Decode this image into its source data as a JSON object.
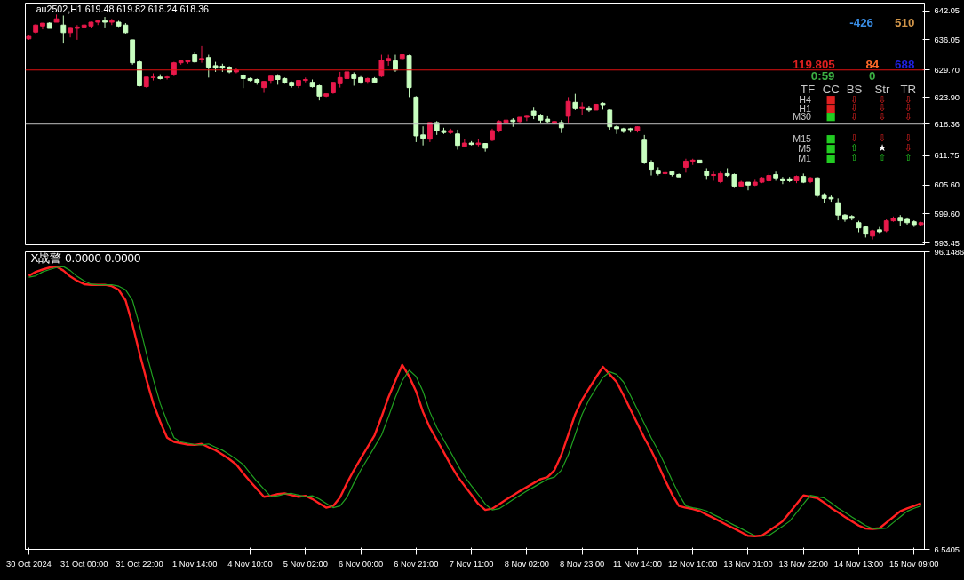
{
  "chart_data": [
    {
      "type": "candlestick",
      "ylim": [
        593.1,
        643.7
      ],
      "tick_labels": "y",
      "grid": false,
      "categories": [
        null,
        null,
        null,
        null,
        null,
        null,
        null,
        null,
        null,
        null,
        null,
        null,
        null,
        null,
        null,
        null,
        null,
        null,
        null,
        null,
        null,
        null,
        null,
        null,
        null,
        null,
        null,
        null,
        null,
        null,
        null,
        null,
        null,
        null,
        null,
        null,
        null,
        null,
        null,
        null,
        null,
        null,
        null,
        null,
        null,
        null,
        null,
        null,
        null,
        null,
        null,
        null,
        null,
        null,
        null,
        null,
        null,
        null,
        null,
        null,
        null,
        null,
        null,
        null,
        null,
        null,
        null,
        null,
        null,
        null,
        null,
        null,
        null,
        null,
        null,
        null,
        null,
        null,
        null,
        null,
        null,
        null,
        null,
        null,
        null,
        null,
        null,
        null,
        null,
        null,
        null,
        null,
        null,
        null,
        null,
        null,
        null,
        null,
        null,
        null,
        null,
        null,
        null,
        null,
        null,
        null,
        null,
        null,
        null,
        null,
        null,
        null,
        null,
        null,
        null,
        null,
        null,
        null,
        null,
        null,
        null,
        null,
        null,
        null,
        null,
        null,
        null,
        null,
        null,
        null
      ],
      "yticks": [
        642.05,
        636.05,
        {
          "value": 623.9,
          "label": "623.90"
        },
        611.75,
        {
          "value": 605.6,
          "label": "605.60"
        },
        {
          "value": 599.6,
          "label": "599.60"
        },
        593.45
      ],
      "ref_lines": [
        {
          "axis": "y",
          "value": 629.7,
          "label": "629.70",
          "color": "#e01010"
        },
        {
          "axis": "y",
          "value": 618.36,
          "label": "618.36",
          "color": "#c0c0c0"
        }
      ],
      "annotations": [
        "au2502,H1  619.48 619.82 618.24 618.36",
        "-426",
        "510",
        "119.805",
        "84",
        "688",
        "0:59",
        "0",
        "TF",
        "CC",
        "BS",
        "Str",
        "TR",
        "H4",
        "H1",
        "M30",
        "M15",
        "M5",
        "M1",
        "■",
        "■",
        "■",
        "■",
        "■",
        "■",
        "⇩",
        "⇩",
        "⇩",
        "⇩",
        "⇩",
        "⇩",
        "⇩",
        "⇩",
        "⇩",
        "⇩",
        "⇩",
        "⇩",
        "⇧",
        "★",
        "⇩",
        "⇧",
        "⇧",
        "⇧"
      ],
      "ohlc": [
        [
          636.2,
          637.1,
          636.0,
          636.9
        ],
        [
          637.6,
          639.3,
          637.3,
          639.1
        ],
        [
          638.9,
          639.5,
          638.2,
          639.5
        ],
        [
          639.5,
          639.7,
          638.4,
          638.4
        ],
        [
          639.7,
          641.3,
          639.7,
          640.4
        ],
        [
          639.1,
          641.1,
          635.4,
          637.5
        ],
        [
          637.5,
          638.7,
          636.5,
          638.6
        ],
        [
          638.4,
          639.1,
          636.0,
          638.7
        ],
        [
          638.7,
          639.3,
          638.4,
          639.1
        ],
        [
          638.9,
          639.8,
          638.4,
          639.7
        ],
        [
          639.7,
          640.2,
          639.1,
          640.0
        ],
        [
          640.0,
          640.8,
          638.6,
          639.7
        ],
        [
          639.7,
          640.4,
          639.1,
          640.0
        ],
        [
          639.7,
          640.0,
          638.7,
          638.9
        ],
        [
          639.1,
          639.5,
          637.3,
          637.5
        ],
        [
          636.0,
          636.0,
          630.8,
          631.2
        ],
        [
          631.4,
          631.7,
          626.2,
          626.4
        ],
        [
          626.2,
          628.2,
          626.0,
          628.2
        ],
        [
          628.1,
          629.0,
          627.5,
          628.2
        ],
        [
          628.2,
          628.8,
          627.7,
          627.9
        ],
        [
          628.1,
          628.4,
          627.7,
          628.2
        ],
        [
          628.8,
          631.4,
          628.4,
          631.2
        ],
        [
          631.2,
          631.7,
          630.8,
          631.6
        ],
        [
          631.4,
          631.7,
          631.0,
          631.7
        ],
        [
          632.9,
          633.4,
          631.2,
          631.4
        ],
        [
          631.9,
          634.7,
          631.2,
          632.1
        ],
        [
          632.3,
          632.9,
          628.1,
          630.3
        ],
        [
          630.6,
          631.4,
          629.3,
          630.1
        ],
        [
          630.5,
          631.0,
          629.3,
          630.1
        ],
        [
          630.3,
          630.5,
          629.0,
          629.3
        ],
        [
          629.3,
          630.1,
          629.0,
          629.7
        ],
        [
          628.6,
          628.8,
          625.9,
          627.9
        ],
        [
          627.9,
          628.1,
          627.3,
          627.5
        ],
        [
          627.7,
          627.9,
          626.6,
          627.1
        ],
        [
          626.0,
          627.3,
          624.9,
          627.3
        ],
        [
          627.5,
          628.4,
          626.8,
          628.4
        ],
        [
          628.4,
          628.8,
          626.6,
          627.7
        ],
        [
          627.9,
          628.1,
          626.8,
          627.0
        ],
        [
          627.1,
          627.3,
          626.0,
          626.4
        ],
        [
          626.4,
          627.5,
          625.9,
          627.5
        ],
        [
          627.5,
          628.1,
          627.1,
          627.7
        ],
        [
          627.1,
          627.7,
          626.0,
          626.2
        ],
        [
          626.4,
          626.6,
          623.3,
          624.2
        ],
        [
          624.2,
          624.7,
          624.0,
          624.7
        ],
        [
          624.9,
          627.1,
          624.7,
          627.1
        ],
        [
          626.8,
          629.3,
          626.0,
          628.1
        ],
        [
          627.9,
          629.5,
          627.5,
          629.3
        ],
        [
          628.8,
          629.2,
          626.4,
          627.9
        ],
        [
          628.1,
          628.4,
          626.8,
          627.1
        ],
        [
          627.3,
          628.1,
          626.8,
          627.9
        ],
        [
          627.9,
          628.2,
          627.0,
          627.1
        ],
        [
          628.4,
          632.9,
          628.2,
          631.7
        ],
        [
          631.6,
          632.9,
          630.6,
          632.1
        ],
        [
          631.6,
          632.9,
          629.3,
          629.7
        ],
        [
          632.1,
          633.0,
          631.9,
          632.9
        ],
        [
          632.7,
          632.9,
          624.0,
          626.0
        ],
        [
          624.0,
          624.2,
          614.6,
          615.9
        ],
        [
          616.1,
          617.9,
          613.9,
          615.4
        ],
        [
          615.2,
          618.7,
          614.6,
          618.7
        ],
        [
          618.7,
          619.0,
          616.1,
          617.0
        ],
        [
          617.0,
          617.6,
          616.3,
          616.6
        ],
        [
          616.6,
          617.4,
          616.3,
          617.0
        ],
        [
          616.3,
          617.2,
          613.0,
          613.9
        ],
        [
          613.7,
          615.2,
          613.5,
          614.4
        ],
        [
          614.4,
          614.8,
          613.9,
          614.1
        ],
        [
          614.1,
          615.2,
          613.7,
          614.4
        ],
        [
          614.3,
          614.4,
          612.6,
          613.3
        ],
        [
          615.0,
          617.4,
          614.8,
          617.0
        ],
        [
          617.0,
          619.2,
          616.6,
          618.9
        ],
        [
          618.7,
          620.1,
          618.3,
          619.2
        ],
        [
          619.2,
          619.6,
          617.8,
          618.9
        ],
        [
          618.9,
          619.8,
          618.5,
          619.8
        ],
        [
          619.8,
          620.1,
          619.0,
          620.0
        ],
        [
          621.1,
          621.8,
          619.4,
          620.1
        ],
        [
          620.1,
          620.5,
          618.5,
          619.2
        ],
        [
          619.4,
          620.0,
          618.5,
          618.9
        ],
        [
          618.5,
          619.0,
          618.3,
          618.9
        ],
        [
          618.7,
          619.2,
          616.5,
          617.6
        ],
        [
          620.0,
          624.0,
          618.7,
          623.1
        ],
        [
          622.9,
          624.7,
          621.3,
          621.6
        ],
        [
          621.6,
          622.9,
          620.3,
          622.0
        ],
        [
          621.6,
          622.2,
          620.9,
          621.3
        ],
        [
          621.3,
          622.5,
          621.3,
          622.5
        ],
        [
          622.7,
          622.9,
          621.4,
          622.4
        ],
        [
          621.3,
          621.4,
          617.2,
          617.8
        ],
        [
          617.8,
          618.1,
          616.3,
          617.4
        ],
        [
          617.4,
          617.6,
          616.5,
          616.8
        ],
        [
          617.4,
          617.6,
          616.6,
          617.2
        ],
        [
          617.0,
          617.9,
          616.6,
          617.8
        ],
        [
          615.0,
          616.1,
          610.0,
          610.4
        ],
        [
          610.4,
          610.8,
          607.6,
          608.9
        ],
        [
          608.7,
          609.3,
          607.6,
          608.0
        ],
        [
          608.0,
          608.7,
          607.6,
          608.2
        ],
        [
          608.4,
          608.5,
          607.4,
          607.8
        ],
        [
          607.8,
          608.0,
          607.3,
          607.3
        ],
        [
          609.3,
          611.1,
          608.2,
          610.6
        ],
        [
          610.6,
          611.1,
          609.8,
          610.8
        ],
        [
          610.8,
          610.8,
          610.2,
          610.2
        ],
        [
          608.5,
          609.1,
          606.7,
          607.6
        ],
        [
          607.6,
          608.4,
          606.5,
          607.8
        ],
        [
          606.3,
          608.4,
          606.0,
          608.0
        ],
        [
          608.0,
          609.1,
          607.3,
          607.6
        ],
        [
          607.8,
          608.0,
          605.0,
          605.4
        ],
        [
          605.4,
          606.5,
          605.4,
          606.2
        ],
        [
          606.2,
          606.2,
          604.5,
          605.6
        ],
        [
          605.6,
          606.7,
          605.4,
          606.2
        ],
        [
          606.2,
          607.3,
          606.0,
          607.1
        ],
        [
          606.5,
          608.0,
          606.3,
          607.6
        ],
        [
          607.8,
          608.4,
          606.5,
          607.1
        ],
        [
          606.9,
          607.3,
          605.8,
          606.5
        ],
        [
          606.9,
          607.3,
          606.2,
          606.5
        ],
        [
          606.5,
          607.6,
          606.0,
          607.4
        ],
        [
          607.4,
          608.0,
          606.0,
          606.2
        ],
        [
          606.3,
          607.3,
          606.0,
          607.1
        ],
        [
          607.1,
          607.3,
          603.0,
          603.4
        ],
        [
          603.6,
          603.9,
          601.9,
          602.8
        ],
        [
          603.0,
          603.4,
          602.1,
          602.7
        ],
        [
          601.9,
          602.8,
          598.2,
          599.3
        ],
        [
          599.3,
          599.5,
          597.9,
          598.4
        ],
        [
          599.0,
          599.3,
          598.2,
          598.6
        ],
        [
          597.7,
          598.1,
          595.7,
          596.6
        ],
        [
          596.8,
          597.1,
          594.6,
          595.3
        ],
        [
          594.9,
          596.2,
          594.2,
          596.0
        ],
        [
          596.2,
          596.8,
          595.5,
          595.8
        ],
        [
          596.0,
          598.4,
          595.7,
          598.1
        ],
        [
          598.1,
          599.0,
          597.9,
          598.6
        ],
        [
          598.8,
          599.3,
          597.1,
          598.1
        ],
        [
          598.4,
          598.8,
          597.3,
          597.7
        ],
        [
          597.9,
          598.2,
          596.8,
          597.3
        ],
        [
          597.3,
          597.9,
          597.1,
          597.7
        ]
      ],
      "colors": [
        "#e8194b",
        "#e8194b",
        "#e8194b",
        "#c8ffc0",
        "#e8194b",
        "#c8ffc0",
        "#e8194b",
        "#e8194b",
        "#e8194b",
        "#e8194b",
        "#e8194b",
        "#c8ffc0",
        "#e8194b",
        "#c8ffc0",
        "#c8ffc0",
        "#c8ffc0",
        "#c8ffc0",
        "#e8194b",
        "#e8194b",
        "#c8ffc0",
        "#e8194b",
        "#e8194b",
        "#e8194b",
        "#e8194b",
        "#c8ffc0",
        "#e8194b",
        "#c8ffc0",
        "#c8ffc0",
        "#c8ffc0",
        "#c8ffc0",
        "#e8194b",
        "#c8ffc0",
        "#c8ffc0",
        "#c8ffc0",
        "#e8194b",
        "#e8194b",
        "#c8ffc0",
        "#c8ffc0",
        "#c8ffc0",
        "#e8194b",
        "#e8194b",
        "#c8ffc0",
        "#c8ffc0",
        "#e8194b",
        "#e8194b",
        "#e8194b",
        "#e8194b",
        "#c8ffc0",
        "#c8ffc0",
        "#e8194b",
        "#c8ffc0",
        "#e8194b",
        "#e8194b",
        "#c8ffc0",
        "#e8194b",
        "#c8ffc0",
        "#c8ffc0",
        "#c8ffc0",
        "#e8194b",
        "#c8ffc0",
        "#c8ffc0",
        "#e8194b",
        "#c8ffc0",
        "#e8194b",
        "#c8ffc0",
        "#e8194b",
        "#c8ffc0",
        "#e8194b",
        "#e8194b",
        "#e8194b",
        "#c8ffc0",
        "#e8194b",
        "#e8194b",
        "#c8ffc0",
        "#c8ffc0",
        "#c8ffc0",
        "#e8194b",
        "#c8ffc0",
        "#e8194b",
        "#c8ffc0",
        "#e8194b",
        "#c8ffc0",
        "#e8194b",
        "#c8ffc0",
        "#c8ffc0",
        "#c8ffc0",
        "#c8ffc0",
        "#c8ffc0",
        "#e8194b",
        "#c8ffc0",
        "#c8ffc0",
        "#c8ffc0",
        "#e8194b",
        "#c8ffc0",
        "#c8ffc0",
        "#e8194b",
        "#e8194b",
        "#c8ffc0",
        "#c8ffc0",
        "#e8194b",
        "#e8194b",
        "#c8ffc0",
        "#c8ffc0",
        "#e8194b",
        "#c8ffc0",
        "#e8194b",
        "#e8194b",
        "#e8194b",
        "#c8ffc0",
        "#c8ffc0",
        "#c8ffc0",
        "#e8194b",
        "#c8ffc0",
        "#e8194b",
        "#c8ffc0",
        "#c8ffc0",
        "#c8ffc0",
        "#c8ffc0",
        "#c8ffc0",
        "#c8ffc0",
        "#c8ffc0",
        "#c8ffc0",
        "#e8194b",
        "#c8ffc0",
        "#e8194b",
        "#e8194b",
        "#c8ffc0",
        "#c8ffc0",
        "#c8ffc0",
        "#e8194b"
      ]
    },
    {
      "type": "line",
      "ylim": [
        6.5405,
        96.1486
      ],
      "grid": false,
      "yticks": [
        96.1486,
        6.5405
      ],
      "categories": [
        "30 Oct 2024",
        null,
        null,
        null,
        null,
        null,
        null,
        null,
        "31 Oct 00:00",
        null,
        null,
        null,
        null,
        null,
        null,
        null,
        "31 Oct 22:00",
        null,
        null,
        null,
        null,
        null,
        null,
        null,
        "1 Nov 14:00",
        null,
        null,
        null,
        null,
        null,
        null,
        null,
        "4 Nov 10:00",
        null,
        null,
        null,
        null,
        null,
        null,
        null,
        "5 Nov 02:00",
        null,
        null,
        null,
        null,
        null,
        null,
        null,
        "6 Nov 00:00",
        null,
        null,
        null,
        null,
        null,
        null,
        null,
        "6 Nov 21:00",
        null,
        null,
        null,
        null,
        null,
        null,
        null,
        "7 Nov 11:00",
        null,
        null,
        null,
        null,
        null,
        null,
        null,
        "8 Nov 02:00",
        null,
        null,
        null,
        null,
        null,
        null,
        null,
        "8 Nov 23:00",
        null,
        null,
        null,
        null,
        null,
        null,
        null,
        "11 Nov 14:00",
        null,
        null,
        null,
        null,
        null,
        null,
        null,
        "12 Nov 10:00",
        null,
        null,
        null,
        null,
        null,
        null,
        null,
        "13 Nov 01:00",
        null,
        null,
        null,
        null,
        null,
        null,
        null,
        "13 Nov 22:00",
        null,
        null,
        null,
        null,
        null,
        null,
        null,
        "14 Nov 13:00",
        null,
        null,
        null,
        null,
        null,
        null,
        null,
        "15 Nov 09:00",
        null
      ],
      "annotations": [
        "X战警 0.0000 0.0000"
      ],
      "series": [
        {
          "color": "#ff2020",
          "values": [
            88.9,
            90.1,
            90.8,
            91.4,
            91.7,
            90.5,
            88.7,
            87.4,
            86.4,
            86.2,
            86.2,
            86.2,
            85.8,
            84.7,
            81.5,
            74.2,
            65.7,
            57.8,
            50.5,
            45.0,
            40.2,
            38.9,
            38.5,
            38.1,
            38.0,
            38.3,
            37.3,
            36.4,
            35.1,
            33.7,
            32.1,
            29.5,
            27.0,
            24.7,
            22.4,
            22.7,
            23.2,
            23.4,
            22.9,
            22.4,
            22.7,
            21.7,
            20.4,
            19.1,
            19.6,
            22.2,
            26.5,
            30.4,
            33.9,
            37.4,
            40.9,
            46.4,
            52.3,
            57.3,
            62.1,
            58.6,
            54.1,
            47.9,
            43.2,
            39.5,
            35.8,
            32.0,
            28.5,
            25.7,
            23.0,
            20.2,
            18.4,
            18.8,
            20.1,
            21.5,
            22.8,
            24.1,
            25.3,
            26.5,
            27.7,
            28.3,
            30.4,
            35.0,
            41.1,
            47.2,
            51.6,
            55.0,
            58.3,
            61.5,
            59.2,
            56.9,
            52.9,
            48.6,
            44.4,
            40.1,
            36.3,
            32.0,
            27.4,
            23.1,
            19.6,
            19.1,
            18.7,
            18.1,
            17.0,
            16.0,
            14.9,
            13.8,
            12.8,
            11.7,
            10.6,
            10.5,
            10.7,
            12.1,
            13.5,
            15.0,
            17.6,
            20.2,
            22.8,
            22.4,
            22.0,
            20.6,
            19.0,
            17.7,
            16.3,
            15.0,
            13.7,
            12.8,
            12.7,
            12.9,
            14.6,
            16.3,
            18.0,
            18.9,
            19.6,
            20.4
          ]
        },
        {
          "color": "#20a020",
          "values": [
            88.5,
            88.9,
            90.1,
            90.8,
            91.4,
            91.7,
            90.5,
            88.7,
            87.4,
            86.4,
            86.2,
            86.2,
            86.2,
            85.8,
            84.7,
            81.5,
            74.2,
            65.7,
            57.8,
            50.5,
            45.0,
            40.2,
            38.9,
            38.5,
            38.1,
            38.0,
            38.3,
            37.3,
            36.4,
            35.1,
            33.7,
            32.1,
            29.5,
            27.0,
            24.7,
            22.4,
            22.7,
            23.2,
            23.4,
            22.9,
            22.4,
            22.7,
            21.7,
            20.4,
            19.1,
            19.6,
            22.2,
            26.5,
            30.4,
            33.9,
            37.4,
            40.9,
            46.4,
            52.3,
            57.3,
            60.5,
            58.6,
            54.1,
            47.9,
            43.2,
            39.5,
            35.8,
            32.0,
            28.5,
            25.7,
            23.0,
            20.2,
            18.4,
            18.8,
            20.1,
            21.5,
            22.8,
            24.1,
            25.3,
            26.5,
            27.7,
            28.3,
            30.4,
            35.0,
            41.1,
            47.2,
            51.6,
            55.0,
            58.3,
            60.0,
            59.2,
            56.9,
            52.9,
            48.6,
            44.4,
            40.1,
            36.3,
            32.0,
            27.4,
            23.1,
            19.6,
            19.1,
            18.7,
            18.1,
            17.0,
            16.0,
            14.9,
            13.8,
            12.8,
            11.7,
            10.6,
            10.5,
            10.7,
            12.1,
            13.5,
            15.0,
            17.6,
            20.2,
            22.8,
            22.4,
            22.0,
            20.6,
            19.0,
            17.7,
            16.3,
            15.0,
            13.7,
            12.8,
            12.7,
            12.9,
            14.6,
            16.3,
            18.0,
            18.9,
            19.6
          ]
        }
      ]
    }
  ]
}
